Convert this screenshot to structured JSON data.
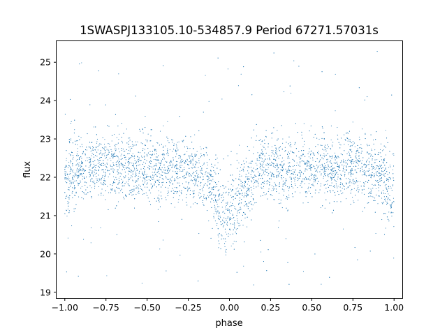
{
  "chart_data": {
    "type": "scatter",
    "title": "1SWASPJ133105.10-534857.9 Period 67271.57031s",
    "xlabel": "phase",
    "ylabel": "flux",
    "xlim": [
      -1.05,
      1.05
    ],
    "ylim": [
      18.85,
      25.55
    ],
    "x_ticks": [
      -1.0,
      -0.75,
      -0.5,
      -0.25,
      0.0,
      0.25,
      0.5,
      0.75,
      1.0
    ],
    "x_tick_labels": [
      "−1.00",
      "−0.75",
      "−0.50",
      "−0.25",
      "0.00",
      "0.25",
      "0.50",
      "0.75",
      "1.00"
    ],
    "y_ticks": [
      19,
      20,
      21,
      22,
      23,
      24,
      25
    ],
    "y_tick_labels": [
      "19",
      "20",
      "21",
      "22",
      "23",
      "24",
      "25"
    ],
    "grid": false,
    "marker_color": "#1f77b4",
    "series": [
      {
        "x": [
          -1.0,
          -0.9,
          -0.75,
          -0.5,
          -0.25,
          -0.15,
          -0.05,
          0.0,
          0.05,
          0.15,
          0.25,
          0.5,
          0.75,
          0.9,
          1.0
        ],
        "y": [
          21.8,
          22.3,
          22.3,
          22.2,
          22.2,
          22.0,
          21.3,
          20.8,
          21.3,
          22.1,
          22.3,
          22.2,
          22.3,
          22.1,
          21.6
        ]
      }
    ]
  }
}
